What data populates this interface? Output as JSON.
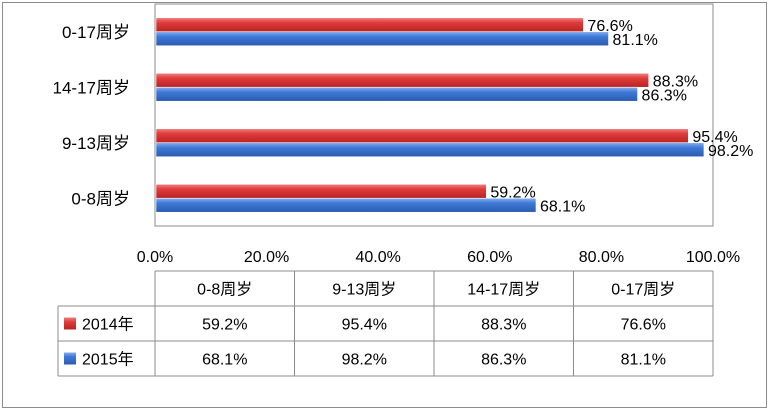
{
  "chart_data": {
    "type": "bar",
    "orientation": "horizontal",
    "categories": [
      "0-17周岁",
      "14-17周岁",
      "9-13周岁",
      "0-8周岁"
    ],
    "table_categories": [
      "0-8周岁",
      "9-13周岁",
      "14-17周岁",
      "0-17周岁"
    ],
    "series": [
      {
        "name": "2014年",
        "color": "#e03c3c",
        "values": [
          76.6,
          88.3,
          95.4,
          59.2
        ]
      },
      {
        "name": "2015年",
        "color": "#3f79d6",
        "values": [
          81.1,
          86.3,
          98.2,
          68.1
        ]
      }
    ],
    "xlim": [
      0,
      100
    ],
    "x_ticks": [
      "0.0%",
      "20.0%",
      "40.0%",
      "60.0%",
      "80.0%",
      "100.0%"
    ],
    "value_suffix": "%",
    "grid": false,
    "data_table": true
  }
}
